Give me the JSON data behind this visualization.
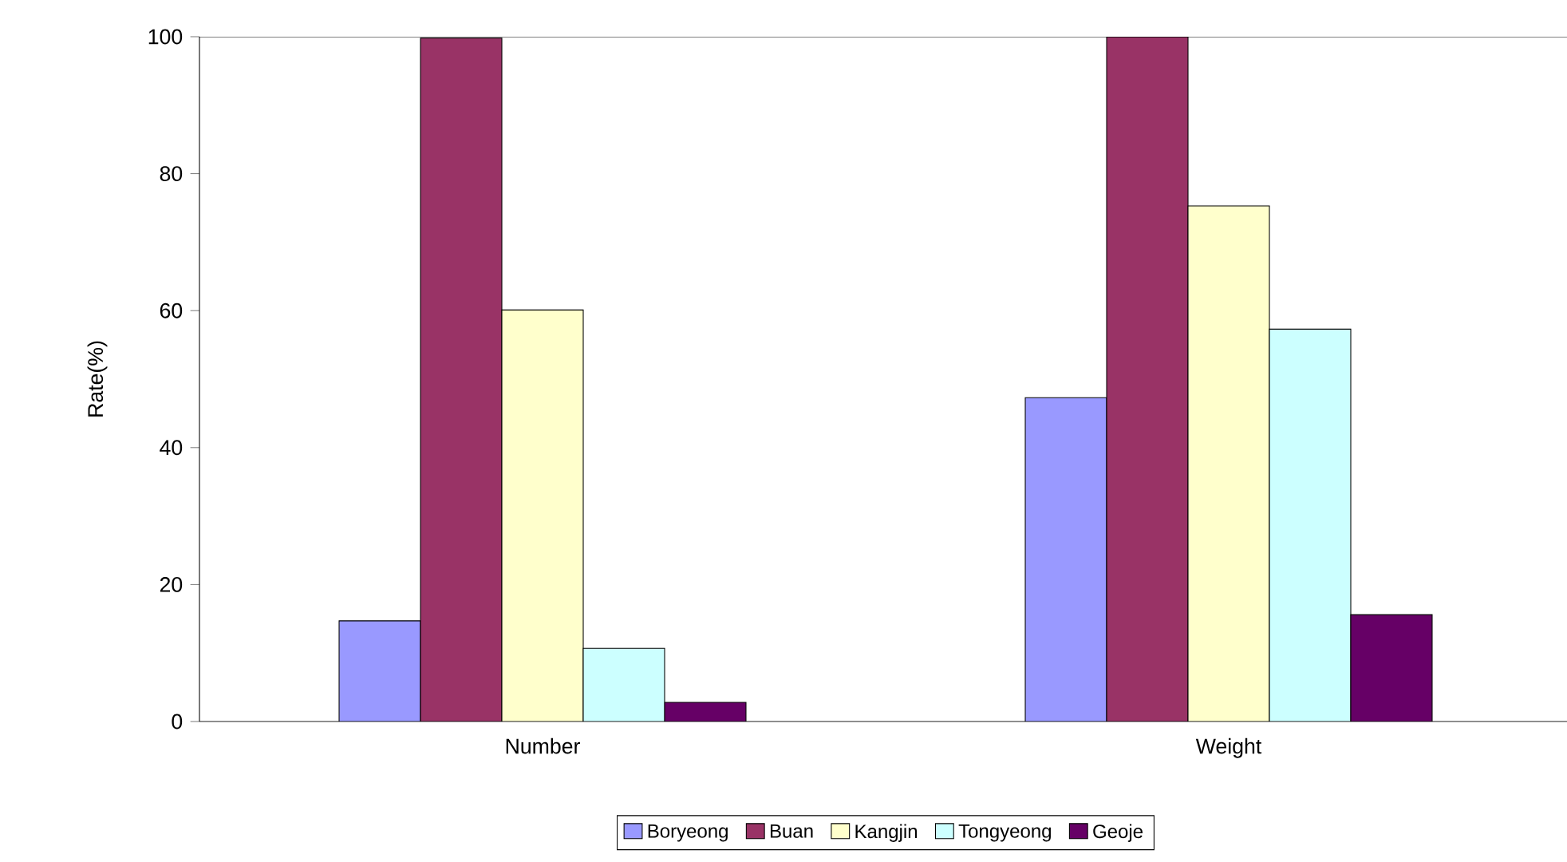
{
  "chart_data": {
    "type": "bar",
    "ylabel": "Rate(%)",
    "categories": [
      "Number",
      "Weight"
    ],
    "series": [
      {
        "name": "Boryeong",
        "color": "#9999ff",
        "values": [
          14.7,
          47.3
        ]
      },
      {
        "name": "Buan",
        "color": "#993366",
        "values": [
          99.8,
          100
        ]
      },
      {
        "name": "Kangjin",
        "color": "#ffffcc",
        "values": [
          60.1,
          75.3
        ]
      },
      {
        "name": "Tongyeong",
        "color": "#ccffff",
        "values": [
          10.7,
          57.3
        ]
      },
      {
        "name": "Geoje",
        "color": "#660066",
        "values": [
          2.8,
          15.6
        ]
      }
    ],
    "ylim": [
      0,
      100
    ],
    "yticks": [
      0,
      20,
      40,
      60,
      80,
      100
    ],
    "legend": "bottom"
  }
}
